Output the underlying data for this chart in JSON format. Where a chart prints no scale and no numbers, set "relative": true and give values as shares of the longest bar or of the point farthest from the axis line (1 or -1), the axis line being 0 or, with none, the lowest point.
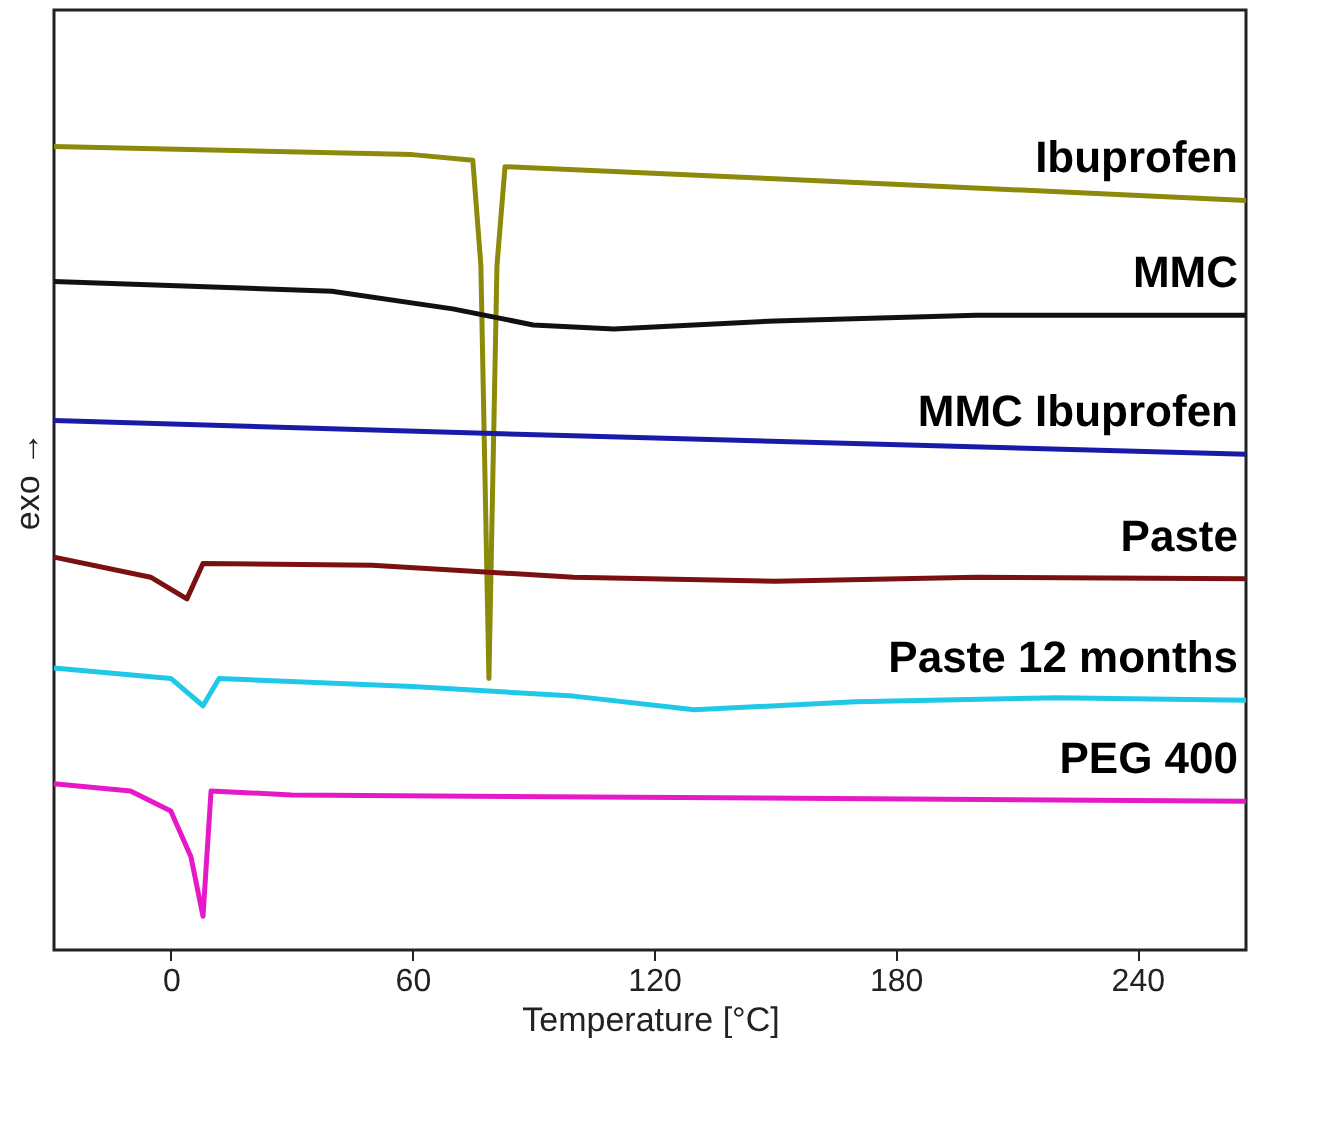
{
  "chart_data": {
    "type": "line",
    "relative": true,
    "xlabel": "Temperature [°C]",
    "ylabel": "exo →",
    "xlim": [
      -29,
      267
    ],
    "xticks": [
      0,
      60,
      120,
      180,
      240
    ],
    "tick_labels": "x",
    "grid": false,
    "legend": false,
    "marker": "none",
    "line_style": "solid",
    "series": [
      {
        "name": "Ibuprofen",
        "color": "#8c8a0a",
        "x": [
          -29,
          60,
          75,
          77,
          79,
          81,
          83,
          150,
          267
        ],
        "values": [
          1.0,
          0.99,
          0.983,
          0.852,
          0.338,
          0.852,
          0.975,
          0.96,
          0.933
        ]
      },
      {
        "name": "MMC",
        "color": "#111111",
        "x": [
          -29,
          40,
          70,
          90,
          110,
          150,
          200,
          267
        ],
        "values": [
          0.832,
          0.82,
          0.798,
          0.778,
          0.773,
          0.783,
          0.79,
          0.79
        ]
      },
      {
        "name": "MMC Ibuprofen",
        "color": "#1a1aa8",
        "x": [
          -29,
          100,
          267
        ],
        "values": [
          0.659,
          0.64,
          0.617
        ]
      },
      {
        "name": "Paste",
        "color": "#7a1010",
        "x": [
          -29,
          -5,
          4,
          8,
          50,
          100,
          150,
          200,
          267
        ],
        "values": [
          0.489,
          0.464,
          0.437,
          0.481,
          0.479,
          0.464,
          0.459,
          0.464,
          0.462
        ]
      },
      {
        "name": "Paste 12 months",
        "color": "#1ec8e6",
        "x": [
          -29,
          0,
          8,
          12,
          60,
          100,
          130,
          170,
          220,
          267
        ],
        "values": [
          0.351,
          0.338,
          0.304,
          0.338,
          0.328,
          0.316,
          0.299,
          0.309,
          0.314,
          0.311
        ]
      },
      {
        "name": "PEG 400",
        "color": "#e619c8",
        "x": [
          -29,
          -10,
          0,
          5,
          8,
          10,
          30,
          267
        ],
        "values": [
          0.207,
          0.198,
          0.173,
          0.116,
          0.042,
          0.198,
          0.193,
          0.185
        ]
      }
    ]
  }
}
